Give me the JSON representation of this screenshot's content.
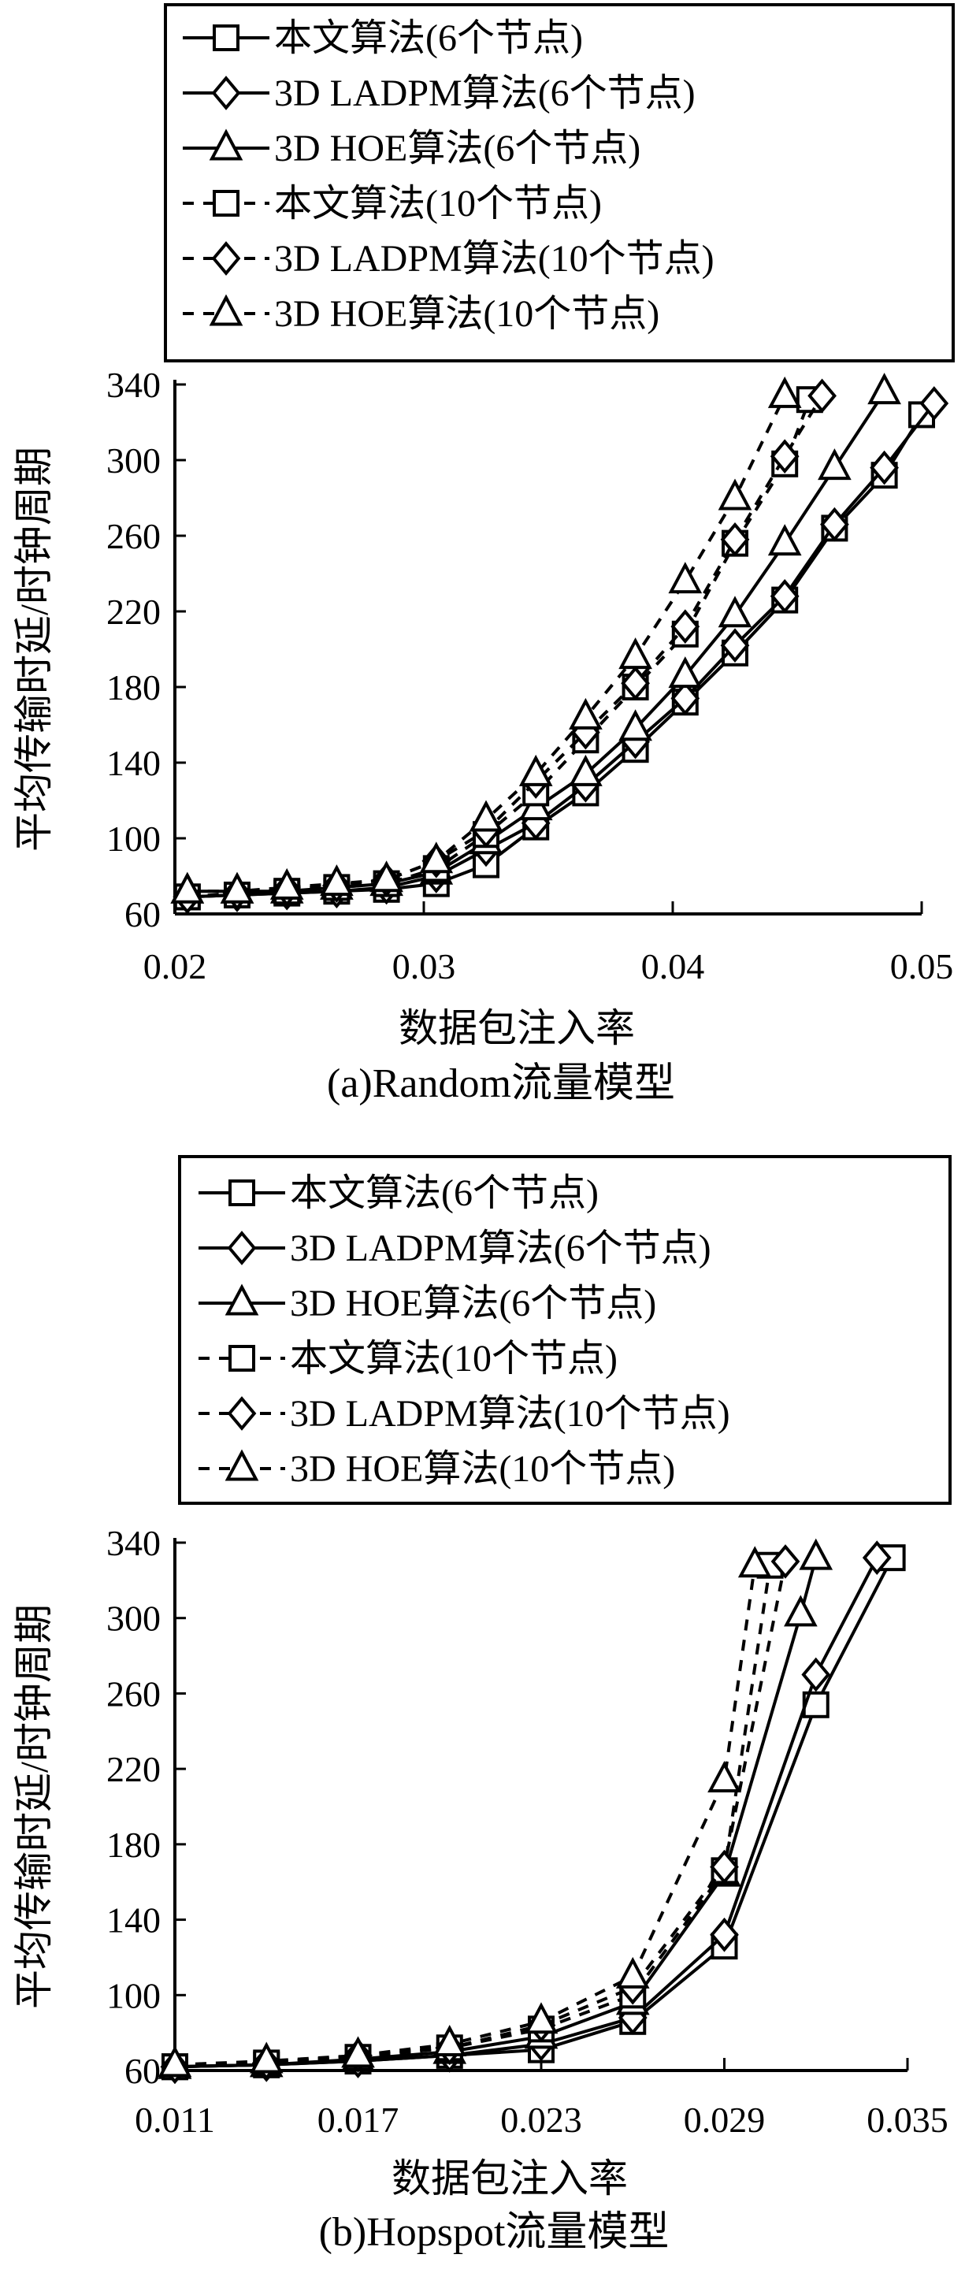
{
  "chart_data": [
    {
      "type": "line",
      "caption": "(a)Random流量模型",
      "xlabel": "数据包注入率",
      "ylabel": "平均传输时延/时钟周期",
      "xlim": [
        0.02,
        0.05
      ],
      "ylim": [
        60,
        340
      ],
      "xticks": [
        "0.02",
        "0.03",
        "0.04",
        "0.05"
      ],
      "yticks": [
        "60",
        "100",
        "140",
        "180",
        "220",
        "260",
        "300",
        "340"
      ],
      "legend_position": "top",
      "series": [
        {
          "name": "本文算法(6个节点)",
          "marker": "square",
          "dash": "solid",
          "x": [
            0.0205,
            0.0225,
            0.0245,
            0.0265,
            0.0285,
            0.0305,
            0.0325,
            0.0345,
            0.0365,
            0.0385,
            0.0405,
            0.0425,
            0.0445,
            0.0465,
            0.0485,
            0.05
          ],
          "y": [
            69,
            70,
            71,
            72,
            73,
            76,
            86,
            106,
            124,
            147,
            172,
            198,
            226,
            264,
            292,
            324
          ]
        },
        {
          "name": "3D LADPM算法(6个节点)",
          "marker": "diamond",
          "dash": "solid",
          "x": [
            0.0205,
            0.0225,
            0.0245,
            0.0265,
            0.0285,
            0.0305,
            0.0325,
            0.0345,
            0.0365,
            0.0385,
            0.0405,
            0.0425,
            0.0445,
            0.0465,
            0.0485,
            0.0505
          ],
          "y": [
            69,
            70,
            71,
            72,
            74,
            80,
            94,
            108,
            128,
            151,
            174,
            202,
            228,
            266,
            296,
            330
          ]
        },
        {
          "name": "3D HOE算法(6个节点)",
          "marker": "triangle",
          "dash": "solid",
          "x": [
            0.0205,
            0.0225,
            0.0245,
            0.0265,
            0.0285,
            0.0305,
            0.0325,
            0.0345,
            0.0365,
            0.0385,
            0.0405,
            0.0425,
            0.0445,
            0.0465,
            0.0485
          ],
          "y": [
            72,
            72,
            72,
            74,
            76,
            82,
            98,
            116,
            134,
            158,
            186,
            218,
            256,
            296,
            336
          ]
        },
        {
          "name": "本文算法(10个节点)",
          "marker": "square",
          "dash": "dashed",
          "x": [
            0.0205,
            0.0225,
            0.0245,
            0.0265,
            0.0285,
            0.0305,
            0.0325,
            0.0345,
            0.0365,
            0.0385,
            0.0405,
            0.0425,
            0.0445,
            0.0455
          ],
          "y": [
            69,
            70,
            72,
            74,
            76,
            84,
            102,
            124,
            152,
            180,
            208,
            256,
            298,
            332
          ]
        },
        {
          "name": "3D LADPM算法(10个节点)",
          "marker": "diamond",
          "dash": "dashed",
          "x": [
            0.0205,
            0.0225,
            0.0245,
            0.0265,
            0.0285,
            0.0305,
            0.0325,
            0.0345,
            0.0365,
            0.0385,
            0.0405,
            0.0425,
            0.0445,
            0.046
          ],
          "y": [
            69,
            71,
            73,
            75,
            78,
            88,
            104,
            130,
            156,
            182,
            212,
            258,
            302,
            334
          ]
        },
        {
          "name": "3D HOE算法(10个节点)",
          "marker": "triangle",
          "dash": "dashed",
          "x": [
            0.0205,
            0.0225,
            0.0245,
            0.0265,
            0.0285,
            0.0305,
            0.0325,
            0.0345,
            0.0365,
            0.0385,
            0.0405,
            0.0425,
            0.0445
          ],
          "y": [
            72,
            72,
            74,
            76,
            78,
            88,
            110,
            134,
            164,
            196,
            236,
            280,
            334
          ]
        }
      ]
    },
    {
      "type": "line",
      "caption": "(b)Hopspot流量模型",
      "xlabel": "数据包注入率",
      "ylabel": "平均传输时延/时钟周期",
      "xlim": [
        0.011,
        0.035
      ],
      "ylim": [
        60,
        340
      ],
      "xticks": [
        "0.011",
        "0.017",
        "0.023",
        "0.029",
        "0.035"
      ],
      "yticks": [
        "60",
        "100",
        "140",
        "180",
        "220",
        "260",
        "300",
        "340"
      ],
      "legend_position": "top",
      "series": [
        {
          "name": "本文算法(6个节点)",
          "marker": "square",
          "dash": "solid",
          "x": [
            0.011,
            0.014,
            0.017,
            0.02,
            0.023,
            0.026,
            0.029,
            0.032,
            0.0345
          ],
          "y": [
            62,
            63,
            65,
            68,
            71,
            86,
            126,
            254,
            332
          ]
        },
        {
          "name": "3D LADPM算法(6个节点)",
          "marker": "diamond",
          "dash": "solid",
          "x": [
            0.011,
            0.014,
            0.017,
            0.02,
            0.023,
            0.026,
            0.029,
            0.032,
            0.034
          ],
          "y": [
            62,
            63,
            65,
            68,
            74,
            88,
            132,
            270,
            332
          ]
        },
        {
          "name": "3D HOE算法(6个节点)",
          "marker": "triangle",
          "dash": "solid",
          "x": [
            0.011,
            0.014,
            0.017,
            0.02,
            0.023,
            0.026,
            0.029,
            0.0315,
            0.032
          ],
          "y": [
            62,
            63,
            66,
            70,
            78,
            96,
            164,
            302,
            332
          ]
        },
        {
          "name": "本文算法(10个节点)",
          "marker": "square",
          "dash": "dashed",
          "x": [
            0.011,
            0.014,
            0.017,
            0.02,
            0.023,
            0.026,
            0.029,
            0.0305
          ],
          "y": [
            62,
            64,
            67,
            72,
            82,
            100,
            166,
            328
          ]
        },
        {
          "name": "3D LADPM算法(10个节点)",
          "marker": "diamond",
          "dash": "dashed",
          "x": [
            0.011,
            0.014,
            0.017,
            0.02,
            0.023,
            0.026,
            0.029,
            0.031
          ],
          "y": [
            62,
            64,
            68,
            72,
            84,
            104,
            168,
            330
          ]
        },
        {
          "name": "3D HOE算法(10个节点)",
          "marker": "triangle",
          "dash": "dashed",
          "x": [
            0.011,
            0.014,
            0.017,
            0.02,
            0.023,
            0.026,
            0.029,
            0.03
          ],
          "y": [
            63,
            65,
            68,
            74,
            86,
            110,
            214,
            328
          ]
        }
      ]
    }
  ]
}
